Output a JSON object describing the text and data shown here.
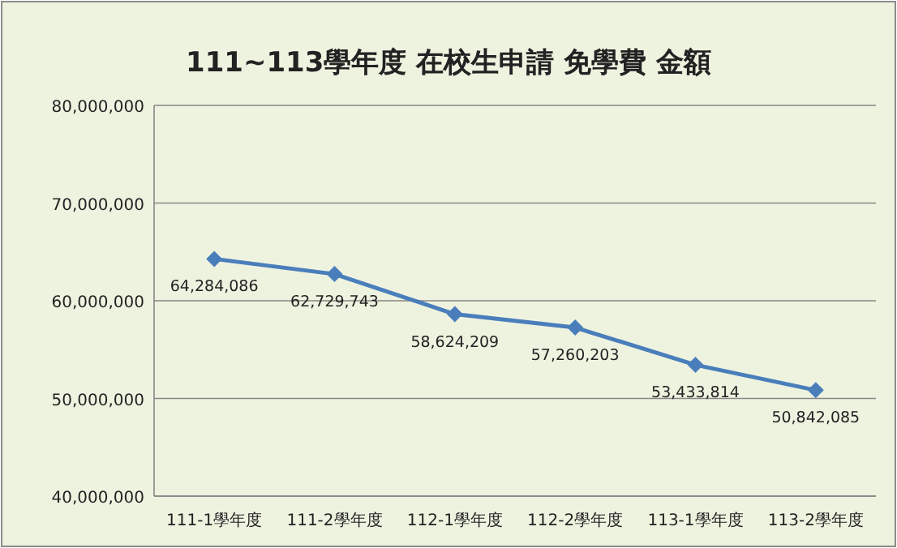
{
  "chart_data": {
    "type": "line",
    "title": "111~113學年度 在校生申請 免學費 金額",
    "categories": [
      "111-1學年度",
      "111-2學年度",
      "112-1學年度",
      "112-2學年度",
      "113-1學年度",
      "113-2學年度"
    ],
    "values": [
      64284086,
      62729743,
      58624209,
      57260203,
      53433814,
      50842085
    ],
    "value_labels": [
      "64,284,086",
      "62,729,743",
      "58,624,209",
      "57,260,203",
      "53,433,814",
      "50,842,085"
    ],
    "color": "#4a7ebb",
    "marker": "diamond",
    "grid": "y",
    "ylim": [
      40000000,
      80000000
    ],
    "yticks": [
      {
        "value": 40000000,
        "label": "40,000,000"
      },
      {
        "value": 50000000,
        "label": "50,000,000"
      },
      {
        "value": 60000000,
        "label": "60,000,000"
      },
      {
        "value": 70000000,
        "label": "70,000,000"
      },
      {
        "value": 80000000,
        "label": "80,000,000"
      }
    ]
  }
}
